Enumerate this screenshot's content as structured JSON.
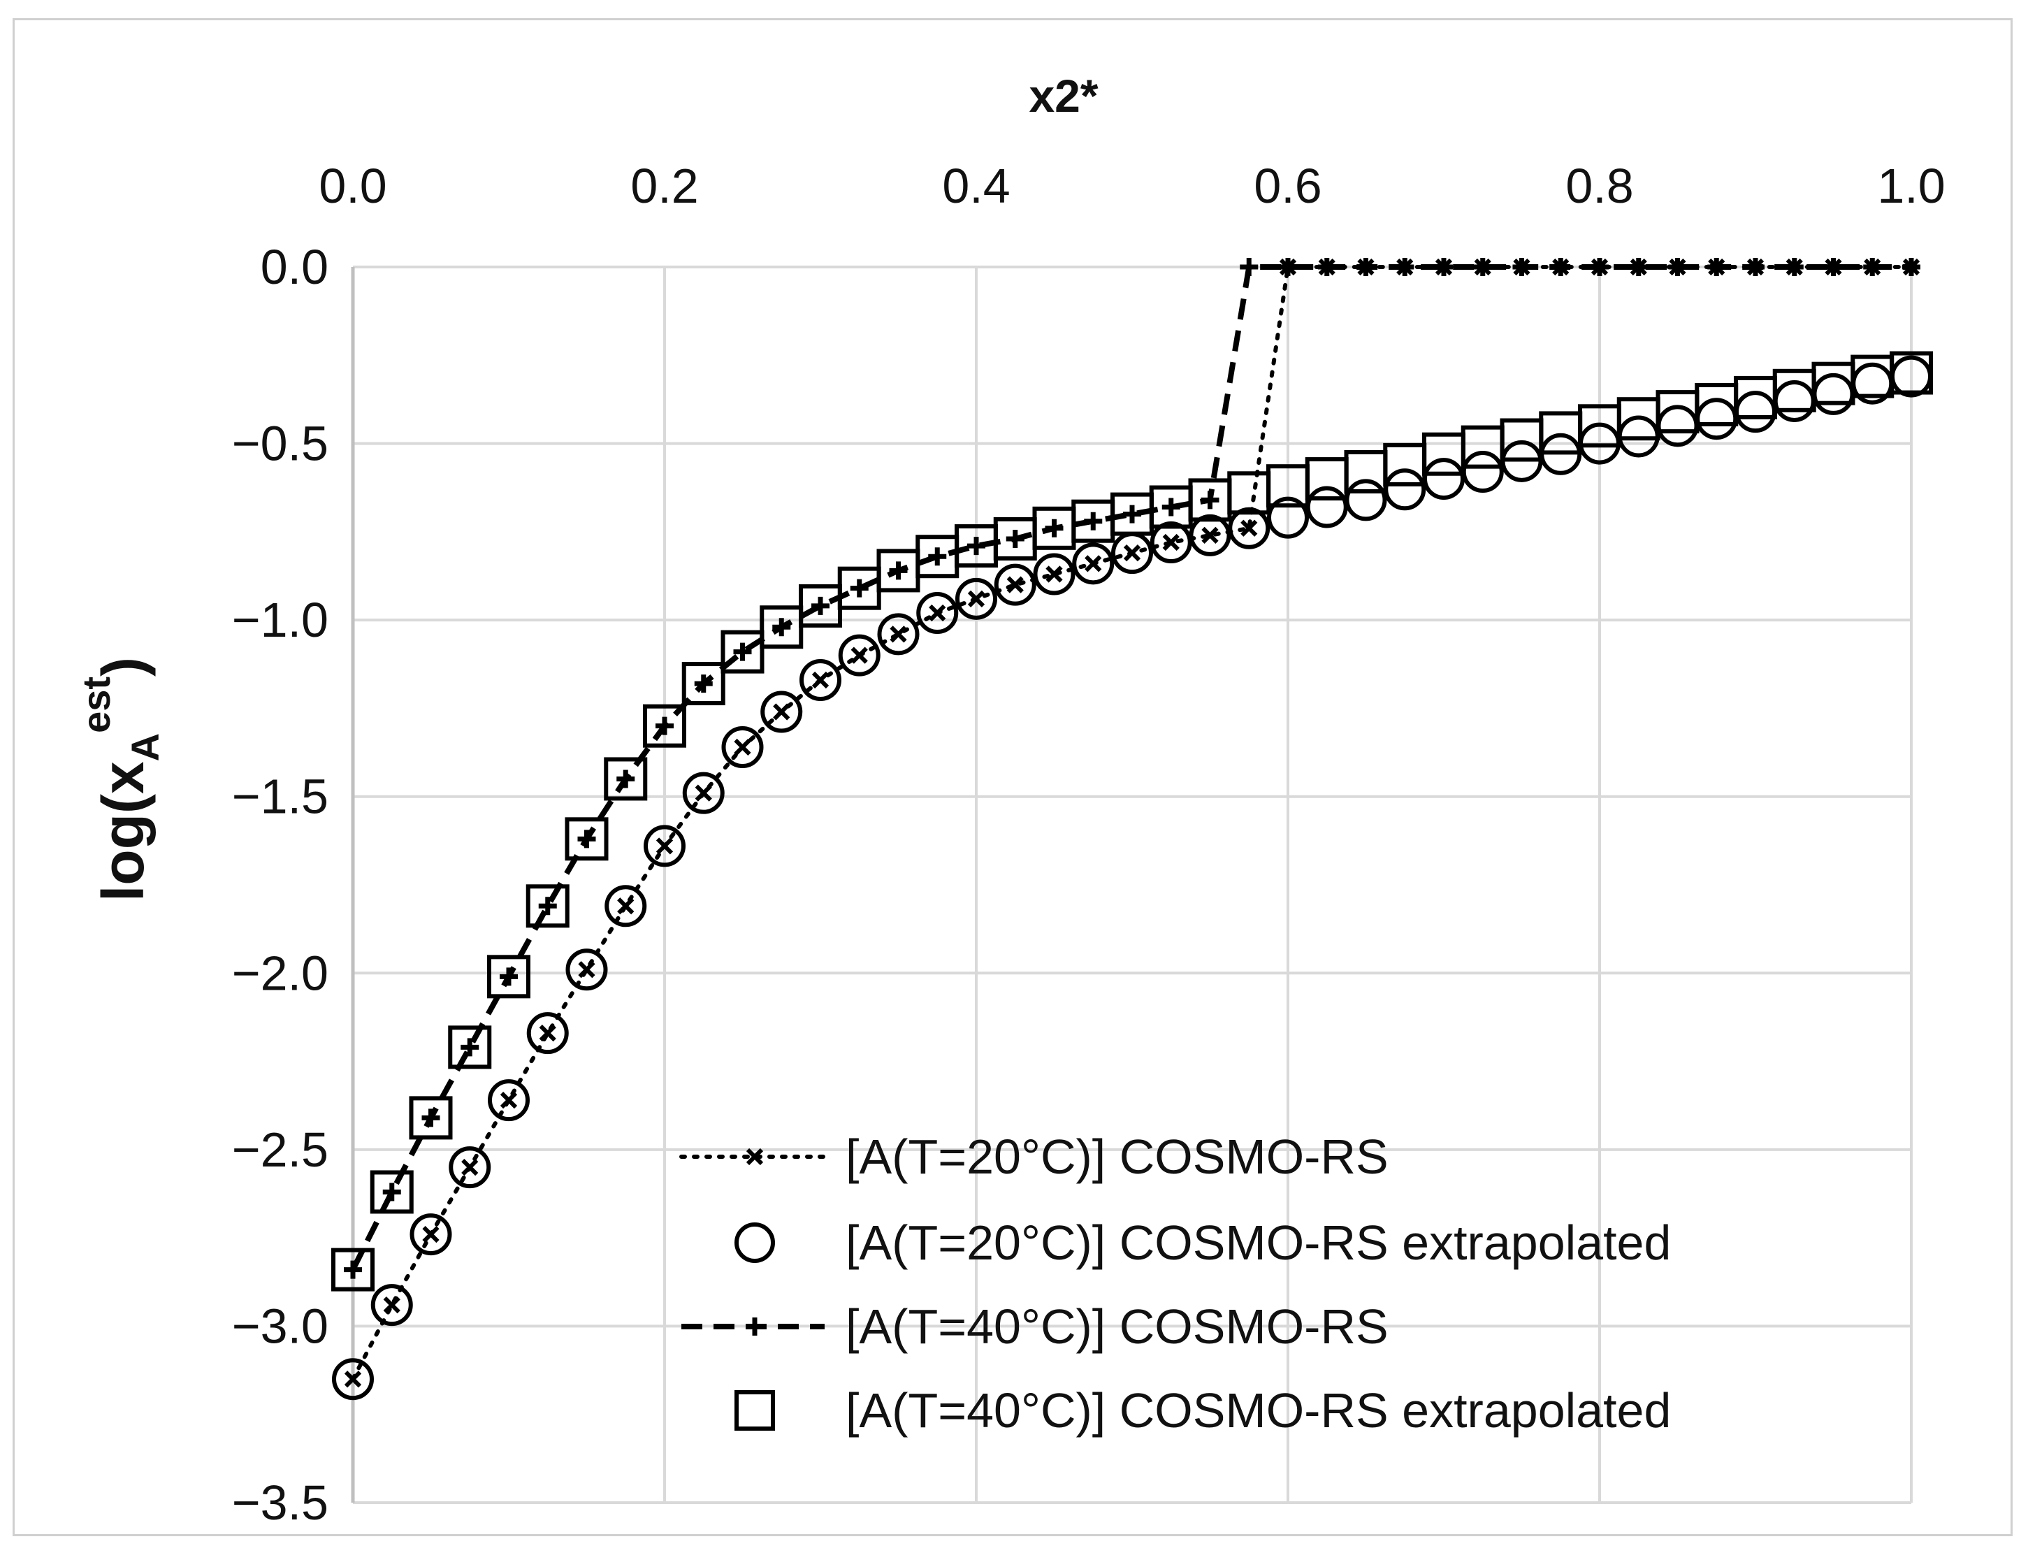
{
  "chart_data": {
    "type": "line",
    "xlabel": "x2*",
    "ylabel": {
      "base": "log(x",
      "sub": "A",
      "sup": "est",
      "close": ")"
    },
    "xlim": [
      0.0,
      1.0
    ],
    "ylim": [
      -3.5,
      0.0
    ],
    "x_axis_position": "top",
    "x_ticks": [
      "0.0",
      "0.2",
      "0.4",
      "0.6",
      "0.8",
      "1.0"
    ],
    "y_ticks": [
      "0.0",
      "−0.5",
      "−1.0",
      "−1.5",
      "−2.0",
      "−2.5",
      "−3.0",
      "−3.5"
    ],
    "grid": true,
    "legend": "bottom-right",
    "series": [
      {
        "name": "[A(T=20°C)] COSMO-RS",
        "style": "dotted-line-x-marker",
        "x": [
          0.0,
          0.025,
          0.05,
          0.075,
          0.1,
          0.125,
          0.15,
          0.175,
          0.2,
          0.225,
          0.25,
          0.275,
          0.3,
          0.325,
          0.35,
          0.375,
          0.4,
          0.425,
          0.45,
          0.475,
          0.5,
          0.525,
          0.55,
          0.575,
          0.6,
          0.625,
          0.65,
          0.675,
          0.7,
          0.725,
          0.75,
          0.775,
          0.8,
          0.825,
          0.85,
          0.875,
          0.9,
          0.925,
          0.95,
          0.975,
          1.0
        ],
        "y": [
          -3.15,
          -2.94,
          -2.74,
          -2.55,
          -2.36,
          -2.17,
          -1.99,
          -1.81,
          -1.64,
          -1.49,
          -1.36,
          -1.26,
          -1.17,
          -1.1,
          -1.04,
          -0.98,
          -0.94,
          -0.9,
          -0.87,
          -0.84,
          -0.81,
          -0.78,
          -0.76,
          -0.74,
          0.0,
          0.0,
          0.0,
          0.0,
          0.0,
          0.0,
          0.0,
          0.0,
          0.0,
          0.0,
          0.0,
          0.0,
          0.0,
          0.0,
          0.0,
          0.0,
          0.0
        ]
      },
      {
        "name": "[A(T=20°C)] COSMO-RS extrapolated",
        "style": "open-circle",
        "x": [
          0.0,
          0.025,
          0.05,
          0.075,
          0.1,
          0.125,
          0.15,
          0.175,
          0.2,
          0.225,
          0.25,
          0.275,
          0.3,
          0.325,
          0.35,
          0.375,
          0.4,
          0.425,
          0.45,
          0.475,
          0.5,
          0.525,
          0.55,
          0.575,
          0.6,
          0.625,
          0.65,
          0.675,
          0.7,
          0.725,
          0.75,
          0.775,
          0.8,
          0.825,
          0.85,
          0.875,
          0.9,
          0.925,
          0.95,
          0.975,
          1.0
        ],
        "y": [
          -3.15,
          -2.94,
          -2.74,
          -2.55,
          -2.36,
          -2.17,
          -1.99,
          -1.81,
          -1.64,
          -1.49,
          -1.36,
          -1.26,
          -1.17,
          -1.1,
          -1.04,
          -0.98,
          -0.94,
          -0.9,
          -0.87,
          -0.84,
          -0.81,
          -0.78,
          -0.76,
          -0.74,
          -0.71,
          -0.68,
          -0.66,
          -0.63,
          -0.6,
          -0.58,
          -0.55,
          -0.53,
          -0.5,
          -0.48,
          -0.45,
          -0.43,
          -0.41,
          -0.38,
          -0.36,
          -0.33,
          -0.31
        ]
      },
      {
        "name": "[A(T=40°C)] COSMO-RS",
        "style": "dashed-line-plus-marker",
        "x": [
          0.0,
          0.025,
          0.05,
          0.075,
          0.1,
          0.125,
          0.15,
          0.175,
          0.2,
          0.225,
          0.25,
          0.275,
          0.3,
          0.325,
          0.35,
          0.375,
          0.4,
          0.425,
          0.45,
          0.475,
          0.5,
          0.525,
          0.55,
          0.575,
          0.6,
          0.625,
          0.65,
          0.675,
          0.7,
          0.725,
          0.75,
          0.775,
          0.8,
          0.825,
          0.85,
          0.875,
          0.9,
          0.925,
          0.95,
          0.975,
          1.0
        ],
        "y": [
          -2.84,
          -2.62,
          -2.41,
          -2.21,
          -2.01,
          -1.81,
          -1.62,
          -1.45,
          -1.3,
          -1.18,
          -1.09,
          -1.02,
          -0.96,
          -0.91,
          -0.86,
          -0.82,
          -0.79,
          -0.77,
          -0.74,
          -0.72,
          -0.7,
          -0.68,
          -0.66,
          0.0,
          0.0,
          0.0,
          0.0,
          0.0,
          0.0,
          0.0,
          0.0,
          0.0,
          0.0,
          0.0,
          0.0,
          0.0,
          0.0,
          0.0,
          0.0,
          0.0,
          0.0
        ]
      },
      {
        "name": "[A(T=40°C)] COSMO-RS extrapolated",
        "style": "open-square",
        "x": [
          0.0,
          0.025,
          0.05,
          0.075,
          0.1,
          0.125,
          0.15,
          0.175,
          0.2,
          0.225,
          0.25,
          0.275,
          0.3,
          0.325,
          0.35,
          0.375,
          0.4,
          0.425,
          0.45,
          0.475,
          0.5,
          0.525,
          0.55,
          0.575,
          0.6,
          0.625,
          0.65,
          0.675,
          0.7,
          0.725,
          0.75,
          0.775,
          0.8,
          0.825,
          0.85,
          0.875,
          0.9,
          0.925,
          0.95,
          0.975,
          1.0
        ],
        "y": [
          -2.84,
          -2.62,
          -2.41,
          -2.21,
          -2.01,
          -1.81,
          -1.62,
          -1.45,
          -1.3,
          -1.18,
          -1.09,
          -1.02,
          -0.96,
          -0.91,
          -0.86,
          -0.82,
          -0.79,
          -0.77,
          -0.74,
          -0.72,
          -0.7,
          -0.68,
          -0.66,
          -0.64,
          -0.62,
          -0.6,
          -0.58,
          -0.56,
          -0.53,
          -0.51,
          -0.49,
          -0.47,
          -0.45,
          -0.43,
          -0.41,
          -0.39,
          -0.37,
          -0.35,
          -0.33,
          -0.31,
          -0.3
        ]
      }
    ]
  }
}
